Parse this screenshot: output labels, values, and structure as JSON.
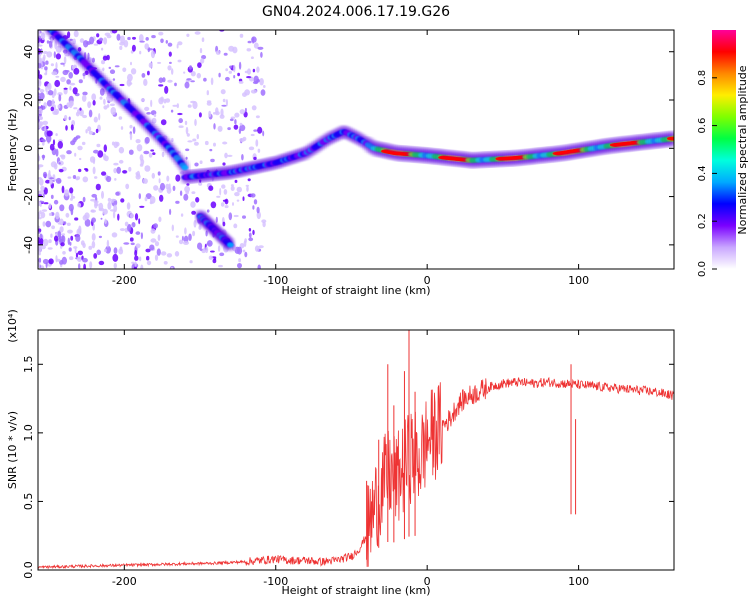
{
  "title": "GN04.2024.006.17.19.G26",
  "chart_data": [
    {
      "type": "heatmap",
      "xlabel": "Height of straight line (km)",
      "ylabel": "Frequency (Hz)",
      "xlim": [
        -257,
        163
      ],
      "ylim": [
        -50,
        49
      ],
      "xticks": [
        -200,
        -100,
        0,
        100
      ],
      "xtick_labels": [
        "-200",
        "-100",
        "0",
        "100"
      ],
      "yticks": [
        -40,
        -20,
        0,
        20,
        40
      ],
      "ytick_labels": [
        "-40",
        "-20",
        "0",
        "20",
        "40"
      ],
      "colorbar": {
        "label": "Normalized spectral amplitude",
        "range": [
          0,
          1
        ],
        "ticks": [
          0.0,
          0.2,
          0.4,
          0.6,
          0.8
        ],
        "tick_labels": [
          "0.0",
          "0.2",
          "0.4",
          "0.6",
          "0.8"
        ],
        "colors": [
          "#ffffff",
          "#c9a6ff",
          "#7a00ff",
          "#0000ff",
          "#00aaff",
          "#00ffdd",
          "#00ff44",
          "#7fff00",
          "#ffee00",
          "#ff8800",
          "#ff0000",
          "#ff0099"
        ]
      },
      "ridges": [
        {
          "x": [
            -250,
            -230,
            -210,
            -190,
            -170,
            -160
          ],
          "y": [
            50,
            38,
            25,
            13,
            0,
            -8
          ]
        },
        {
          "x": [
            -160,
            -130,
            -100,
            -80,
            -65,
            -55,
            -45,
            -35,
            -20,
            0,
            30,
            60,
            90,
            120,
            163
          ],
          "y": [
            -12,
            -10,
            -6,
            -2,
            4,
            7,
            4,
            0,
            -2,
            -3,
            -5,
            -4,
            -2,
            1,
            4
          ]
        },
        {
          "x": [
            -150,
            -140,
            -130
          ],
          "y": [
            -28,
            -34,
            -40
          ]
        }
      ]
    },
    {
      "type": "line",
      "xlabel": "Height of straight line (km)",
      "ylabel": "SNR (10 * v/v)",
      "y_multiplier": "(x10⁴)",
      "xlim": [
        -257,
        163
      ],
      "ylim": [
        0,
        1.75
      ],
      "xticks": [
        -200,
        -100,
        0,
        100
      ],
      "xtick_labels": [
        "-200",
        "-100",
        "0",
        "100"
      ],
      "yticks": [
        0.0,
        0.5,
        1.0,
        1.5
      ],
      "ytick_labels": [
        "0.0",
        "0.5",
        "1.0",
        "1.5"
      ],
      "series": [
        {
          "color": "#ee3333",
          "x": [
            -257,
            -240,
            -220,
            -200,
            -180,
            -160,
            -140,
            -120,
            -110,
            -100,
            -90,
            -80,
            -70,
            -60,
            -50,
            -45,
            -40,
            -35,
            -30,
            -25,
            -20,
            -15,
            -10,
            -5,
            0,
            5,
            10,
            15,
            20,
            25,
            30,
            40,
            50,
            60,
            70,
            80,
            90,
            100,
            110,
            120,
            130,
            140,
            150,
            163
          ],
          "y": [
            0.02,
            0.025,
            0.03,
            0.035,
            0.04,
            0.045,
            0.05,
            0.06,
            0.07,
            0.08,
            0.07,
            0.07,
            0.06,
            0.07,
            0.1,
            0.15,
            0.25,
            0.45,
            0.6,
            0.7,
            0.65,
            0.75,
            0.85,
            0.8,
            0.95,
            1.0,
            1.05,
            1.1,
            1.2,
            1.25,
            1.28,
            1.33,
            1.36,
            1.37,
            1.36,
            1.37,
            1.36,
            1.35,
            1.34,
            1.33,
            1.32,
            1.31,
            1.3,
            1.27
          ]
        }
      ],
      "spikes": [
        {
          "x": -26,
          "y": 1.5
        },
        {
          "x": -22,
          "y": 1.2
        },
        {
          "x": -15,
          "y": 1.45
        },
        {
          "x": -12,
          "y": 1.75
        },
        {
          "x": -8,
          "y": 1.3
        },
        {
          "x": -40,
          "y": 0.65
        },
        {
          "x": -32,
          "y": 0.95
        },
        {
          "x": 95,
          "y": 1.5
        },
        {
          "x": 98,
          "y": 1.1
        }
      ]
    }
  ]
}
